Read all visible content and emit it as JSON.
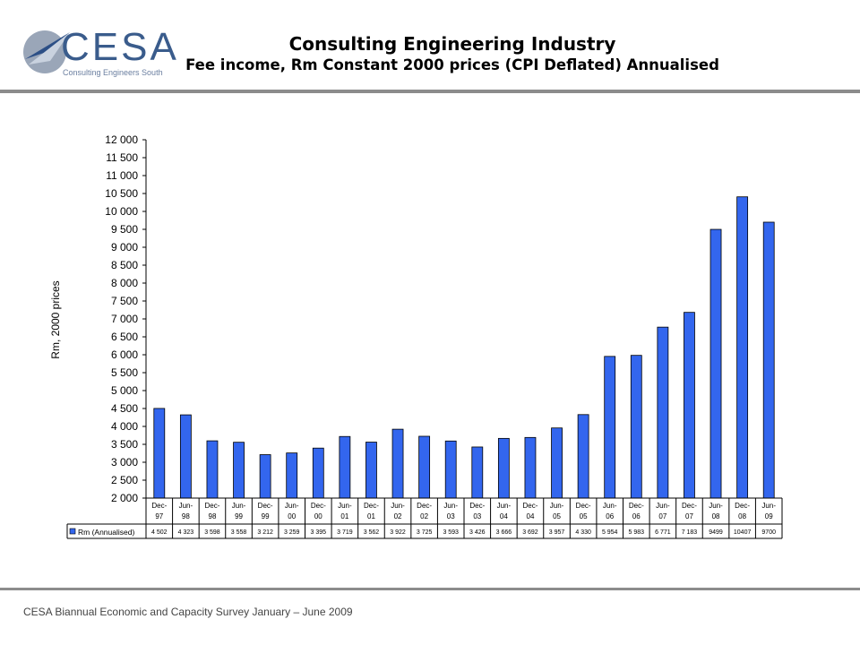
{
  "header": {
    "logo_text": "CESA",
    "logo_tagline": "Consulting Engineers South",
    "title": "Consulting Engineering Industry",
    "subtitle": "Fee income, Rm Constant 2000 prices (CPI Deflated) Annualised"
  },
  "footer": {
    "text": "CESA Biannual Economic and Capacity Survey January – June 2009"
  },
  "colors": {
    "bar": "#3366ee",
    "bar_stroke": "#000000",
    "accent": "#3a5c8c"
  },
  "chart_data": {
    "type": "bar",
    "title": "",
    "ylabel": "Rm, 2000 prices",
    "xlabel": "",
    "ylim": [
      2000,
      12000
    ],
    "ytick_step": 500,
    "ytick_labels": [
      "2 000",
      "2 500",
      "3 000",
      "3 500",
      "4 000",
      "4 500",
      "5 000",
      "5 500",
      "6 000",
      "6 500",
      "7 000",
      "7 500",
      "8 000",
      "8 500",
      "9 000",
      "9 500",
      "10 000",
      "10 500",
      "11 000",
      "11 500",
      "12 000"
    ],
    "categories": [
      [
        "Dec-",
        "97"
      ],
      [
        "Jun-",
        "98"
      ],
      [
        "Dec-",
        "98"
      ],
      [
        "Jun-",
        "99"
      ],
      [
        "Dec-",
        "99"
      ],
      [
        "Jun-",
        "00"
      ],
      [
        "Dec-",
        "00"
      ],
      [
        "Jun-",
        "01"
      ],
      [
        "Dec-",
        "01"
      ],
      [
        "Jun-",
        "02"
      ],
      [
        "Dec-",
        "02"
      ],
      [
        "Jun-",
        "03"
      ],
      [
        "Dec-",
        "03"
      ],
      [
        "Jun-",
        "04"
      ],
      [
        "Dec-",
        "04"
      ],
      [
        "Jun-",
        "05"
      ],
      [
        "Dec-",
        "05"
      ],
      [
        "Jun-",
        "06"
      ],
      [
        "Dec-",
        "06"
      ],
      [
        "Jun-",
        "07"
      ],
      [
        "Dec-",
        "07"
      ],
      [
        "Jun-",
        "08"
      ],
      [
        "Dec-",
        "08"
      ],
      [
        "Jun-",
        "09"
      ]
    ],
    "series": [
      {
        "name": "Rm (Annualised)",
        "values": [
          4502,
          4323,
          3598,
          3558,
          3212,
          3259,
          3395,
          3719,
          3562,
          3922,
          3725,
          3593,
          3426,
          3666,
          3692,
          3957,
          4330,
          5954,
          5983,
          6771,
          7183,
          9499,
          10407,
          9700
        ],
        "value_labels": [
          "4 502",
          "4 323",
          "3 598",
          "3 558",
          "3 212",
          "3 259",
          "3 395",
          "3 719",
          "3 562",
          "3 922",
          "3 725",
          "3 593",
          "3 426",
          "3 666",
          "3 692",
          "3 957",
          "4 330",
          "5 954",
          "5 983",
          "6 771",
          "7 183",
          "9499",
          "10407",
          "9700"
        ]
      }
    ],
    "grid": false,
    "legend": "data-table"
  }
}
